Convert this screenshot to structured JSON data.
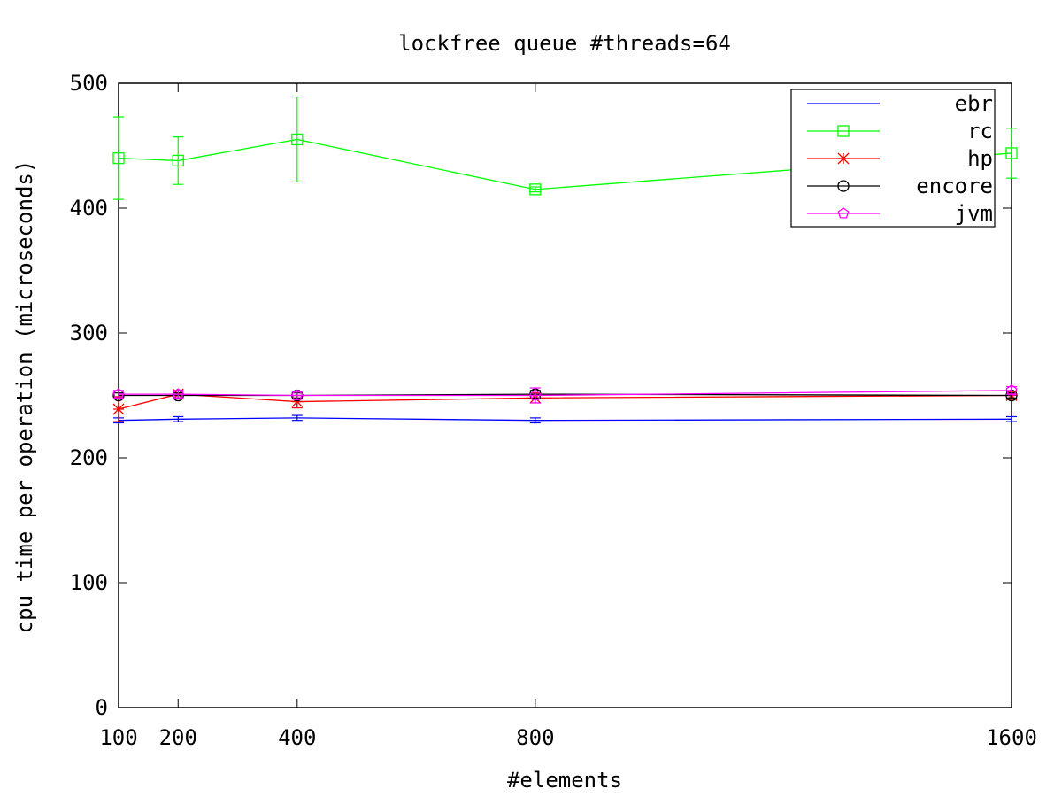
{
  "chart_data": {
    "type": "line",
    "title": "lockfree queue #threads=64",
    "xlabel": "#elements",
    "ylabel": "cpu time per operation (microseconds)",
    "x": [
      100,
      200,
      400,
      800,
      1600
    ],
    "xlim": [
      100,
      1600
    ],
    "ylim": [
      0,
      500
    ],
    "xticks": [
      "100",
      "200",
      "400",
      "800",
      "1600"
    ],
    "yticks": [
      "0",
      "100",
      "200",
      "300",
      "400",
      "500"
    ],
    "grid": false,
    "legend_position": "top-right",
    "series": [
      {
        "name": "ebr",
        "color": "#0000ff",
        "marker": "none",
        "values": [
          230,
          231,
          232,
          230,
          231
        ],
        "errors": [
          2,
          2,
          2,
          2,
          2
        ]
      },
      {
        "name": "rc",
        "color": "#00ff00",
        "marker": "square",
        "values": [
          440,
          438,
          455,
          415,
          444
        ],
        "errors": [
          33,
          19,
          34,
          2,
          20
        ]
      },
      {
        "name": "hp",
        "color": "#ff0000",
        "marker": "star",
        "values": [
          239,
          251,
          245,
          248,
          250
        ],
        "errors": [
          10,
          3,
          5,
          4,
          3
        ]
      },
      {
        "name": "encore",
        "color": "#000000",
        "marker": "circle",
        "values": [
          250,
          250,
          250,
          251,
          250
        ],
        "errors": [
          2,
          2,
          2,
          3,
          2
        ]
      },
      {
        "name": "jvm",
        "color": "#ff00ff",
        "marker": "pentagon",
        "values": [
          251,
          251,
          250,
          250,
          254
        ],
        "errors": [
          3,
          3,
          3,
          6,
          3
        ]
      }
    ]
  }
}
